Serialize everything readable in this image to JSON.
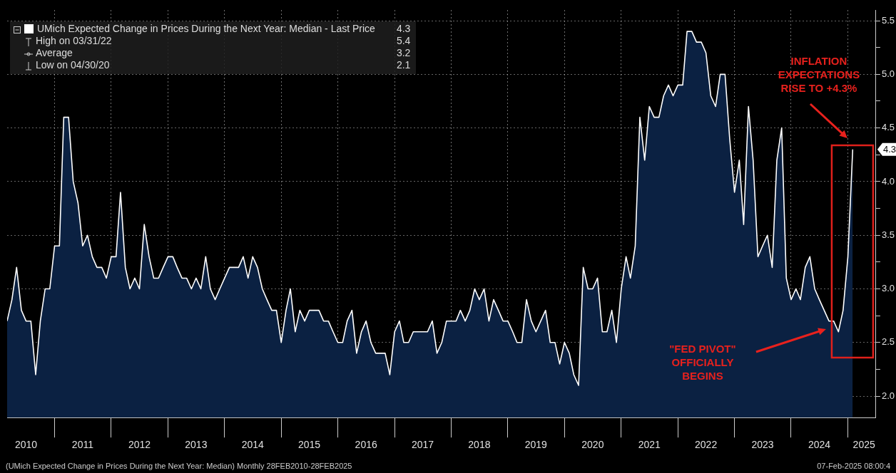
{
  "chart_data": {
    "type": "area",
    "x": [
      "2010-03",
      "2010-04",
      "2010-05",
      "2010-06",
      "2010-07",
      "2010-08",
      "2010-09",
      "2010-10",
      "2010-11",
      "2010-12",
      "2011-01",
      "2011-02",
      "2011-03",
      "2011-04",
      "2011-05",
      "2011-06",
      "2011-07",
      "2011-08",
      "2011-09",
      "2011-10",
      "2011-11",
      "2011-12",
      "2012-01",
      "2012-02",
      "2012-03",
      "2012-04",
      "2012-05",
      "2012-06",
      "2012-07",
      "2012-08",
      "2012-09",
      "2012-10",
      "2012-11",
      "2012-12",
      "2013-01",
      "2013-02",
      "2013-03",
      "2013-04",
      "2013-05",
      "2013-06",
      "2013-07",
      "2013-08",
      "2013-09",
      "2013-10",
      "2013-11",
      "2013-12",
      "2014-01",
      "2014-02",
      "2014-03",
      "2014-04",
      "2014-05",
      "2014-06",
      "2014-07",
      "2014-08",
      "2014-09",
      "2014-10",
      "2014-11",
      "2014-12",
      "2015-01",
      "2015-02",
      "2015-03",
      "2015-04",
      "2015-05",
      "2015-06",
      "2015-07",
      "2015-08",
      "2015-09",
      "2015-10",
      "2015-11",
      "2015-12",
      "2016-01",
      "2016-02",
      "2016-03",
      "2016-04",
      "2016-05",
      "2016-06",
      "2016-07",
      "2016-08",
      "2016-09",
      "2016-10",
      "2016-11",
      "2016-12",
      "2017-01",
      "2017-02",
      "2017-03",
      "2017-04",
      "2017-05",
      "2017-06",
      "2017-07",
      "2017-08",
      "2017-09",
      "2017-10",
      "2017-11",
      "2017-12",
      "2018-01",
      "2018-02",
      "2018-03",
      "2018-04",
      "2018-05",
      "2018-06",
      "2018-07",
      "2018-08",
      "2018-09",
      "2018-10",
      "2018-11",
      "2018-12",
      "2019-01",
      "2019-02",
      "2019-03",
      "2019-04",
      "2019-05",
      "2019-06",
      "2019-07",
      "2019-08",
      "2019-09",
      "2019-10",
      "2019-11",
      "2019-12",
      "2020-01",
      "2020-02",
      "2020-03",
      "2020-04",
      "2020-05",
      "2020-06",
      "2020-07",
      "2020-08",
      "2020-09",
      "2020-10",
      "2020-11",
      "2020-12",
      "2021-01",
      "2021-02",
      "2021-03",
      "2021-04",
      "2021-05",
      "2021-06",
      "2021-07",
      "2021-08",
      "2021-09",
      "2021-10",
      "2021-11",
      "2021-12",
      "2022-01",
      "2022-02",
      "2022-03",
      "2022-04",
      "2022-05",
      "2022-06",
      "2022-07",
      "2022-08",
      "2022-09",
      "2022-10",
      "2022-11",
      "2022-12",
      "2023-01",
      "2023-02",
      "2023-03",
      "2023-04",
      "2023-05",
      "2023-06",
      "2023-07",
      "2023-08",
      "2023-09",
      "2023-10",
      "2023-11",
      "2023-12",
      "2024-01",
      "2024-02",
      "2024-03",
      "2024-04",
      "2024-05",
      "2024-06",
      "2024-07",
      "2024-08",
      "2024-09",
      "2024-10",
      "2024-11",
      "2024-12",
      "2025-01",
      "2025-02"
    ],
    "series": [
      {
        "name": "UMich Expected Change in Prices During the Next Year: Median - Last Price",
        "color": "#ffffff",
        "values": [
          2.7,
          2.9,
          3.2,
          2.8,
          2.7,
          2.7,
          2.2,
          2.7,
          3.0,
          3.0,
          3.4,
          3.4,
          4.6,
          4.6,
          4.0,
          3.8,
          3.4,
          3.5,
          3.3,
          3.2,
          3.2,
          3.1,
          3.3,
          3.3,
          3.9,
          3.2,
          3.0,
          3.1,
          3.0,
          3.6,
          3.3,
          3.1,
          3.1,
          3.2,
          3.3,
          3.3,
          3.2,
          3.1,
          3.1,
          3.0,
          3.1,
          3.0,
          3.3,
          3.0,
          2.9,
          3.0,
          3.1,
          3.2,
          3.2,
          3.2,
          3.3,
          3.1,
          3.3,
          3.2,
          3.0,
          2.9,
          2.8,
          2.8,
          2.5,
          2.8,
          3.0,
          2.6,
          2.8,
          2.7,
          2.8,
          2.8,
          2.8,
          2.7,
          2.7,
          2.6,
          2.5,
          2.5,
          2.7,
          2.8,
          2.4,
          2.6,
          2.7,
          2.5,
          2.4,
          2.4,
          2.4,
          2.2,
          2.6,
          2.7,
          2.5,
          2.5,
          2.6,
          2.6,
          2.6,
          2.6,
          2.7,
          2.4,
          2.5,
          2.7,
          2.7,
          2.7,
          2.8,
          2.7,
          2.8,
          3.0,
          2.9,
          3.0,
          2.7,
          2.9,
          2.8,
          2.7,
          2.7,
          2.6,
          2.5,
          2.5,
          2.9,
          2.7,
          2.6,
          2.7,
          2.8,
          2.5,
          2.5,
          2.3,
          2.5,
          2.4,
          2.2,
          2.1,
          3.2,
          3.0,
          3.0,
          3.1,
          2.6,
          2.6,
          2.8,
          2.5,
          3.0,
          3.3,
          3.1,
          3.4,
          4.6,
          4.2,
          4.7,
          4.6,
          4.6,
          4.8,
          4.9,
          4.8,
          4.9,
          4.9,
          5.4,
          5.4,
          5.3,
          5.3,
          5.2,
          4.8,
          4.7,
          5.0,
          5.0,
          4.4,
          3.9,
          4.2,
          3.6,
          4.7,
          4.2,
          3.3,
          3.4,
          3.5,
          3.2,
          4.2,
          4.5,
          3.1,
          2.9,
          3.0,
          2.9,
          3.2,
          3.3,
          3.0,
          2.9,
          2.8,
          2.7,
          2.7,
          2.6,
          2.8,
          3.3,
          4.3
        ]
      }
    ],
    "xlim": [
      "2010-03",
      "2025-07"
    ],
    "xticks": [
      {
        "value": "2010-07",
        "label": "2010"
      },
      {
        "value": "2011-01",
        "label": null
      },
      {
        "value": "2011-07",
        "label": "2011"
      },
      {
        "value": "2012-01",
        "label": null
      },
      {
        "value": "2012-07",
        "label": "2012"
      },
      {
        "value": "2013-01",
        "label": null
      },
      {
        "value": "2013-07",
        "label": "2013"
      },
      {
        "value": "2014-01",
        "label": null
      },
      {
        "value": "2014-07",
        "label": "2014"
      },
      {
        "value": "2015-01",
        "label": null
      },
      {
        "value": "2015-07",
        "label": "2015"
      },
      {
        "value": "2016-01",
        "label": null
      },
      {
        "value": "2016-07",
        "label": "2016"
      },
      {
        "value": "2017-01",
        "label": null
      },
      {
        "value": "2017-07",
        "label": "2017"
      },
      {
        "value": "2018-01",
        "label": null
      },
      {
        "value": "2018-07",
        "label": "2018"
      },
      {
        "value": "2019-01",
        "label": null
      },
      {
        "value": "2019-07",
        "label": "2019"
      },
      {
        "value": "2020-01",
        "label": null
      },
      {
        "value": "2020-07",
        "label": "2020"
      },
      {
        "value": "2021-01",
        "label": null
      },
      {
        "value": "2021-07",
        "label": "2021"
      },
      {
        "value": "2022-01",
        "label": null
      },
      {
        "value": "2022-07",
        "label": "2022"
      },
      {
        "value": "2023-01",
        "label": null
      },
      {
        "value": "2023-07",
        "label": "2023"
      },
      {
        "value": "2024-01",
        "label": null
      },
      {
        "value": "2024-07",
        "label": "2024"
      },
      {
        "value": "2025-01",
        "label": null
      },
      {
        "value": "2025-04-15",
        "label": "2025"
      }
    ],
    "ylim": [
      1.8,
      5.6
    ],
    "yticks": [
      {
        "value": 2,
        "label": "2.0"
      },
      {
        "value": 2.25,
        "label": null
      },
      {
        "value": 2.5,
        "label": "2.5"
      },
      {
        "value": 2.75,
        "label": null
      },
      {
        "value": 3,
        "label": "3.0"
      },
      {
        "value": 3.25,
        "label": null
      },
      {
        "value": 3.5,
        "label": "3.5"
      },
      {
        "value": 3.75,
        "label": null
      },
      {
        "value": 4,
        "label": "4.0"
      },
      {
        "value": 4.25,
        "label": null
      },
      {
        "value": 4.5,
        "label": "4.5"
      },
      {
        "value": 4.75,
        "label": null
      },
      {
        "value": 5,
        "label": "5.0"
      },
      {
        "value": 5.25,
        "label": null
      },
      {
        "value": 5.5,
        "label": "5.5"
      }
    ],
    "grid": true,
    "legend": "top left",
    "annotations": [
      "INFLATION EXPECTATIONS RISE TO +4.3%",
      "\"FED PIVOT\" OFFICIALLY BEGINS",
      "4.3",
      "4.3",
      "High on 03/31/22 5.4",
      "Average 3.2",
      "Low on 04/30/20 2.1",
      "(UMich Expected Change in Prices During the Next Year: Median)  Monthly 28FEB2010-28FEB2025",
      "07-Feb-2025 08:00:4"
    ]
  }
}
